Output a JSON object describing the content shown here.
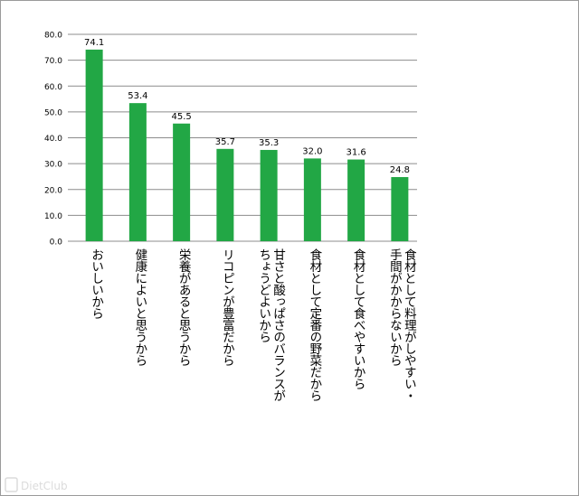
{
  "chart_data": {
    "type": "bar",
    "categories": [
      "おいしいから",
      "健康によいと思うから",
      "栄養があると思うから",
      "リコピンが豊富だから",
      "甘さと酸っぱさのバランスが\nちょうどよいから",
      "食材として定番の野菜だから",
      "食材として食べやすいから",
      "食材として料理がしやすい・\n手間がかからないから"
    ],
    "values": [
      74.1,
      53.4,
      45.5,
      35.7,
      35.3,
      32.0,
      31.6,
      24.8
    ],
    "value_labels": [
      "74.1",
      "53.4",
      "45.5",
      "35.7",
      "35.3",
      "32.0",
      "31.6",
      "24.8"
    ],
    "ylim": [
      0,
      80
    ],
    "yticks": [
      "0.0",
      "10.0",
      "20.0",
      "30.0",
      "40.0",
      "50.0",
      "60.0",
      "70.0",
      "80.0"
    ],
    "grid": true,
    "legend": "none",
    "bar_color": "#22a745",
    "grid_color": "#8c8c8c"
  },
  "watermark": {
    "text": "DietClub",
    "icon": "dietclub-logo-icon"
  }
}
